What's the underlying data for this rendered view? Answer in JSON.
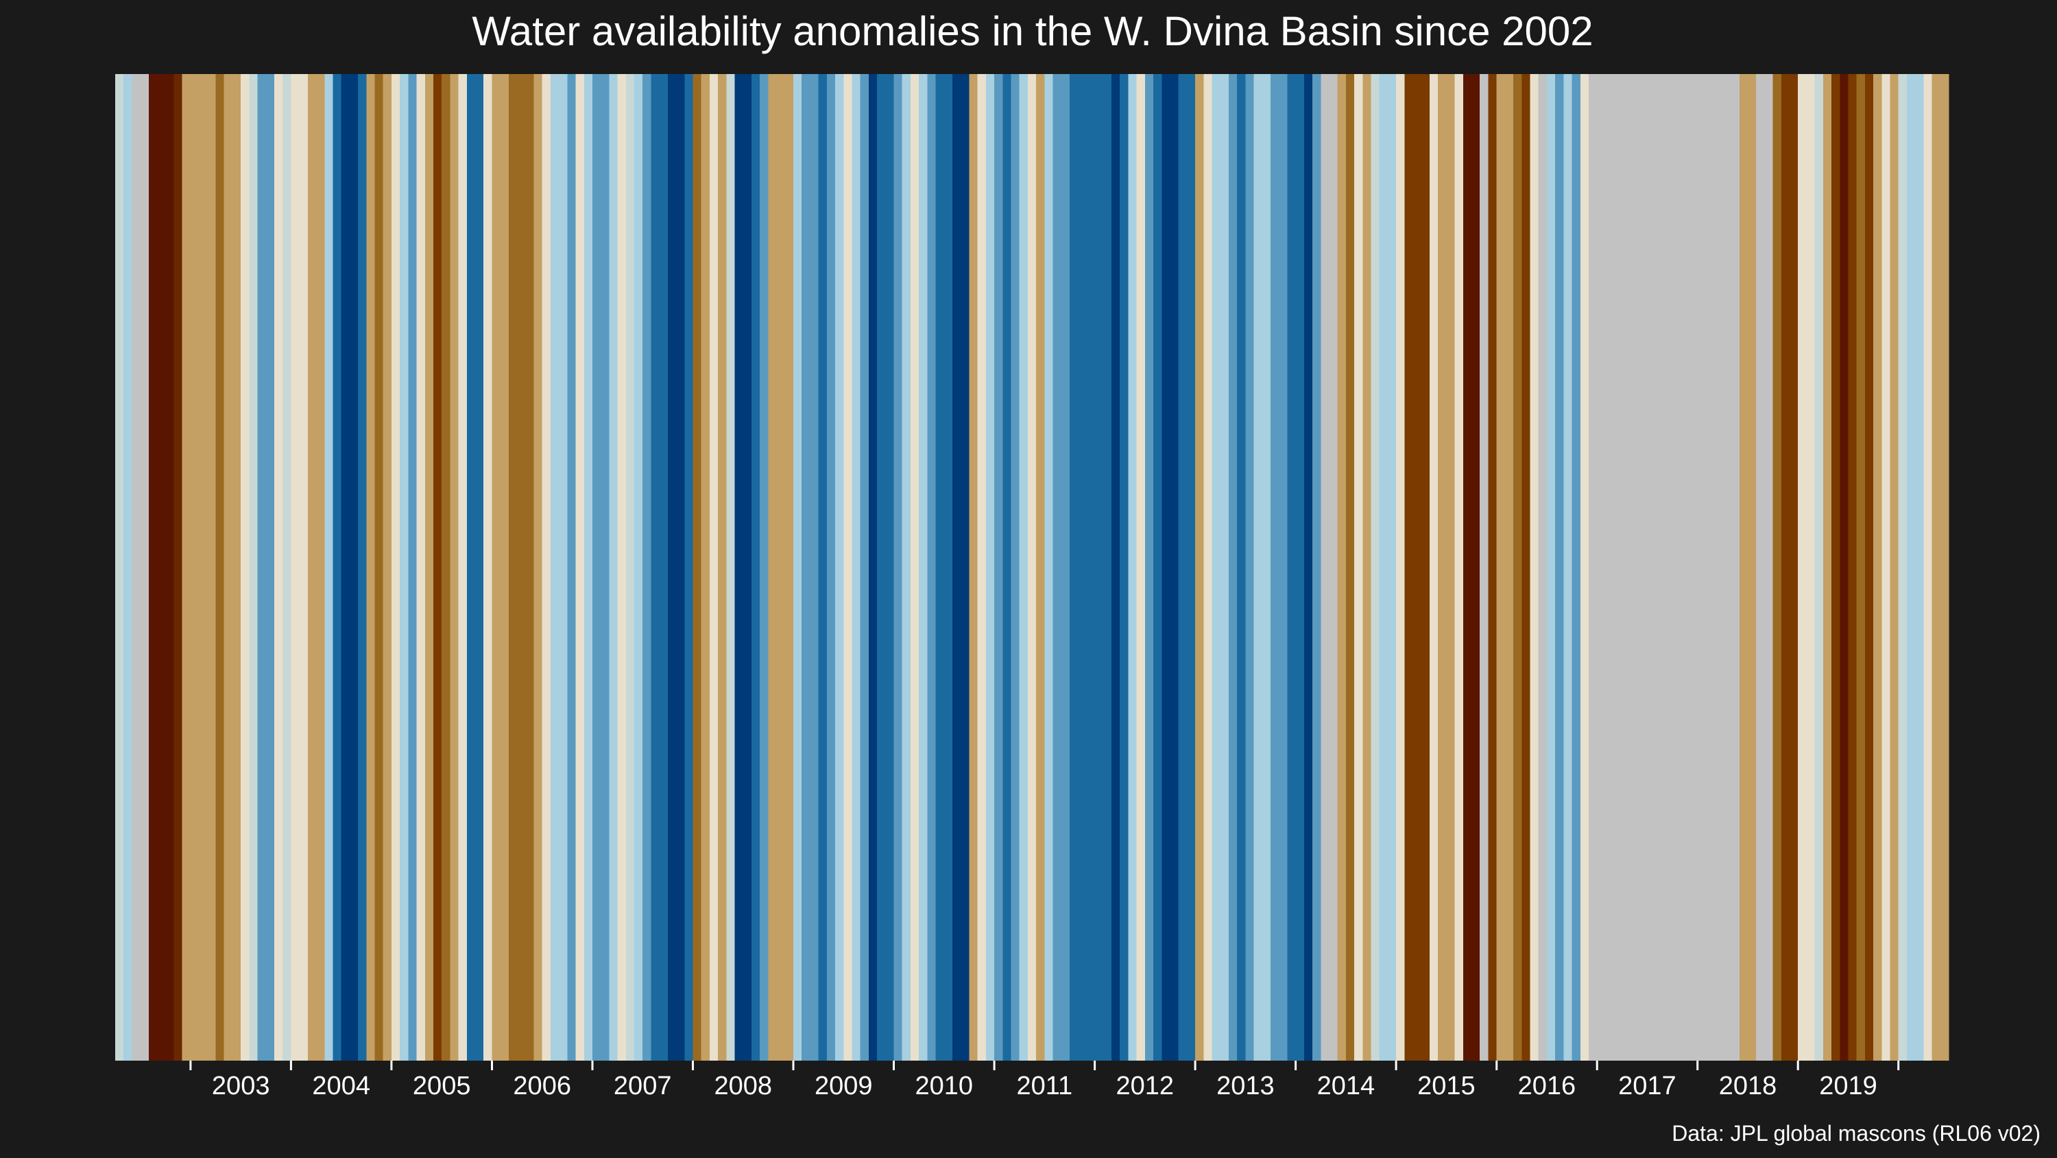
{
  "chart_data": {
    "type": "heatmap",
    "title": "Water availability anomalies in the W. Dvina Basin since 2002",
    "caption": "Data: JPL global mascons (RL06 v02)",
    "x_range": [
      "2002-04",
      "2020-06"
    ],
    "tick_labels": [
      "2003",
      "2004",
      "2005",
      "2006",
      "2007",
      "2008",
      "2009",
      "2010",
      "2011",
      "2012",
      "2013",
      "2014",
      "2015",
      "2016",
      "2017",
      "2018",
      "2019"
    ],
    "tick_positions_year": [
      2003,
      2004,
      2005,
      2006,
      2007,
      2008,
      2009,
      2010,
      2011,
      2012,
      2013,
      2014,
      2015,
      2016,
      2017,
      2018,
      2019,
      2020
    ],
    "colors": {
      "background": "#1a1a1a",
      "missing": "#c2c2c2",
      "scale": {
        "-4": "#5a1500",
        "-3": "#7a3a00",
        "-2": "#9a6a22",
        "-1": "#c4a064",
        "0": "#e8e0cc",
        "1": "#a8d0e0",
        "2": "#5a9ac0",
        "3": "#1a6aa0",
        "4": "#003a78"
      }
    },
    "anomaly_class_by_month": [
      {
        "month": "2002-04",
        "class": 0.5
      },
      {
        "month": "2002-05",
        "class": 1
      },
      {
        "month": "2002-06",
        "class": null
      },
      {
        "month": "2002-07",
        "class": null
      },
      {
        "month": "2002-08",
        "class": -4
      },
      {
        "month": "2002-09",
        "class": -4
      },
      {
        "month": "2002-10",
        "class": -4
      },
      {
        "month": "2002-11",
        "class": -3.5
      },
      {
        "month": "2002-12",
        "class": -1
      },
      {
        "month": "2003-01",
        "class": -1
      },
      {
        "month": "2003-02",
        "class": -1
      },
      {
        "month": "2003-03",
        "class": -1
      },
      {
        "month": "2003-04",
        "class": -2
      },
      {
        "month": "2003-05",
        "class": -1
      },
      {
        "month": "2003-06",
        "class": -1
      },
      {
        "month": "2003-07",
        "class": 0
      },
      {
        "month": "2003-08",
        "class": 0.5
      },
      {
        "month": "2003-09",
        "class": 2
      },
      {
        "month": "2003-10",
        "class": 2
      },
      {
        "month": "2003-11",
        "class": 0
      },
      {
        "month": "2003-12",
        "class": 0.5
      },
      {
        "month": "2004-01",
        "class": 0
      },
      {
        "month": "2004-02",
        "class": 0
      },
      {
        "month": "2004-03",
        "class": -1
      },
      {
        "month": "2004-04",
        "class": -1
      },
      {
        "month": "2004-05",
        "class": 1
      },
      {
        "month": "2004-06",
        "class": 3
      },
      {
        "month": "2004-07",
        "class": 4
      },
      {
        "month": "2004-08",
        "class": 4
      },
      {
        "month": "2004-09",
        "class": 3
      },
      {
        "month": "2004-10",
        "class": -1
      },
      {
        "month": "2004-11",
        "class": -2
      },
      {
        "month": "2004-12",
        "class": -1
      },
      {
        "month": "2005-01",
        "class": 0
      },
      {
        "month": "2005-02",
        "class": 1
      },
      {
        "month": "2005-03",
        "class": 2
      },
      {
        "month": "2005-04",
        "class": 0
      },
      {
        "month": "2005-05",
        "class": -1
      },
      {
        "month": "2005-06",
        "class": -3
      },
      {
        "month": "2005-07",
        "class": -2
      },
      {
        "month": "2005-08",
        "class": -1
      },
      {
        "month": "2005-09",
        "class": 0
      },
      {
        "month": "2005-10",
        "class": 3
      },
      {
        "month": "2005-11",
        "class": 3
      },
      {
        "month": "2005-12",
        "class": 0
      },
      {
        "month": "2006-01",
        "class": -1
      },
      {
        "month": "2006-02",
        "class": -1
      },
      {
        "month": "2006-03",
        "class": -2
      },
      {
        "month": "2006-04",
        "class": -2
      },
      {
        "month": "2006-05",
        "class": -2
      },
      {
        "month": "2006-06",
        "class": -1
      },
      {
        "month": "2006-07",
        "class": 0
      },
      {
        "month": "2006-08",
        "class": 1
      },
      {
        "month": "2006-09",
        "class": 1
      },
      {
        "month": "2006-10",
        "class": 2
      },
      {
        "month": "2006-11",
        "class": 0
      },
      {
        "month": "2006-12",
        "class": 1
      },
      {
        "month": "2007-01",
        "class": 2
      },
      {
        "month": "2007-02",
        "class": 2
      },
      {
        "month": "2007-03",
        "class": 1
      },
      {
        "month": "2007-04",
        "class": 0
      },
      {
        "month": "2007-05",
        "class": 0.5
      },
      {
        "month": "2007-06",
        "class": 1
      },
      {
        "month": "2007-07",
        "class": 2
      },
      {
        "month": "2007-08",
        "class": 3
      },
      {
        "month": "2007-09",
        "class": 3
      },
      {
        "month": "2007-10",
        "class": 4
      },
      {
        "month": "2007-11",
        "class": 4
      },
      {
        "month": "2007-12",
        "class": 3
      },
      {
        "month": "2008-01",
        "class": -2
      },
      {
        "month": "2008-02",
        "class": -1
      },
      {
        "month": "2008-03",
        "class": 0
      },
      {
        "month": "2008-04",
        "class": -1
      },
      {
        "month": "2008-05",
        "class": 0.5
      },
      {
        "month": "2008-06",
        "class": 4
      },
      {
        "month": "2008-07",
        "class": 4
      },
      {
        "month": "2008-08",
        "class": 3
      },
      {
        "month": "2008-09",
        "class": 2
      },
      {
        "month": "2008-10",
        "class": -1
      },
      {
        "month": "2008-11",
        "class": -1
      },
      {
        "month": "2008-12",
        "class": -1
      },
      {
        "month": "2009-01",
        "class": 1
      },
      {
        "month": "2009-02",
        "class": 2
      },
      {
        "month": "2009-03",
        "class": 2
      },
      {
        "month": "2009-04",
        "class": 3
      },
      {
        "month": "2009-05",
        "class": 2
      },
      {
        "month": "2009-06",
        "class": 1
      },
      {
        "month": "2009-07",
        "class": 0
      },
      {
        "month": "2009-08",
        "class": 1
      },
      {
        "month": "2009-09",
        "class": 2
      },
      {
        "month": "2009-10",
        "class": 4
      },
      {
        "month": "2009-11",
        "class": 3
      },
      {
        "month": "2009-12",
        "class": 3
      },
      {
        "month": "2010-01",
        "class": 2
      },
      {
        "month": "2010-02",
        "class": 1
      },
      {
        "month": "2010-03",
        "class": 0
      },
      {
        "month": "2010-04",
        "class": 1
      },
      {
        "month": "2010-05",
        "class": 2
      },
      {
        "month": "2010-06",
        "class": 3
      },
      {
        "month": "2010-07",
        "class": 3
      },
      {
        "month": "2010-08",
        "class": 4
      },
      {
        "month": "2010-09",
        "class": 4
      },
      {
        "month": "2010-10",
        "class": -1
      },
      {
        "month": "2010-11",
        "class": 0
      },
      {
        "month": "2010-12",
        "class": 1
      },
      {
        "month": "2011-01",
        "class": 2
      },
      {
        "month": "2011-02",
        "class": 3
      },
      {
        "month": "2011-03",
        "class": 2
      },
      {
        "month": "2011-04",
        "class": 1
      },
      {
        "month": "2011-05",
        "class": 0
      },
      {
        "month": "2011-06",
        "class": -1
      },
      {
        "month": "2011-07",
        "class": 1
      },
      {
        "month": "2011-08",
        "class": 2
      },
      {
        "month": "2011-09",
        "class": 2
      },
      {
        "month": "2011-10",
        "class": 3
      },
      {
        "month": "2011-11",
        "class": 3
      },
      {
        "month": "2011-12",
        "class": 3
      },
      {
        "month": "2012-01",
        "class": 3
      },
      {
        "month": "2012-02",
        "class": 3
      },
      {
        "month": "2012-03",
        "class": 4
      },
      {
        "month": "2012-04",
        "class": 3
      },
      {
        "month": "2012-05",
        "class": 1
      },
      {
        "month": "2012-06",
        "class": 0
      },
      {
        "month": "2012-07",
        "class": 2
      },
      {
        "month": "2012-08",
        "class": 3
      },
      {
        "month": "2012-09",
        "class": 4
      },
      {
        "month": "2012-10",
        "class": 4
      },
      {
        "month": "2012-11",
        "class": 3
      },
      {
        "month": "2012-12",
        "class": 3
      },
      {
        "month": "2013-01",
        "class": -1
      },
      {
        "month": "2013-02",
        "class": 0
      },
      {
        "month": "2013-03",
        "class": 1
      },
      {
        "month": "2013-04",
        "class": 1
      },
      {
        "month": "2013-05",
        "class": 2
      },
      {
        "month": "2013-06",
        "class": 3
      },
      {
        "month": "2013-07",
        "class": 2
      },
      {
        "month": "2013-08",
        "class": 1
      },
      {
        "month": "2013-09",
        "class": 1
      },
      {
        "month": "2013-10",
        "class": 2
      },
      {
        "month": "2013-11",
        "class": 2
      },
      {
        "month": "2013-12",
        "class": 3
      },
      {
        "month": "2014-01",
        "class": 3
      },
      {
        "month": "2014-02",
        "class": 4
      },
      {
        "month": "2014-03",
        "class": 2
      },
      {
        "month": "2014-04",
        "class": null
      },
      {
        "month": "2014-05",
        "class": null
      },
      {
        "month": "2014-06",
        "class": -1
      },
      {
        "month": "2014-07",
        "class": -2
      },
      {
        "month": "2014-08",
        "class": 0
      },
      {
        "month": "2014-09",
        "class": -1
      },
      {
        "month": "2014-10",
        "class": 0.5
      },
      {
        "month": "2014-11",
        "class": 1
      },
      {
        "month": "2014-12",
        "class": 1
      },
      {
        "month": "2015-01",
        "class": 0
      },
      {
        "month": "2015-02",
        "class": -3
      },
      {
        "month": "2015-03",
        "class": -3
      },
      {
        "month": "2015-04",
        "class": -3
      },
      {
        "month": "2015-05",
        "class": 0
      },
      {
        "month": "2015-06",
        "class": -1
      },
      {
        "month": "2015-07",
        "class": -1
      },
      {
        "month": "2015-08",
        "class": 0
      },
      {
        "month": "2015-09",
        "class": -4
      },
      {
        "month": "2015-10",
        "class": -4
      },
      {
        "month": "2015-11",
        "class": null
      },
      {
        "month": "2015-12",
        "class": -3
      },
      {
        "month": "2016-01",
        "class": -1
      },
      {
        "month": "2016-02",
        "class": -1
      },
      {
        "month": "2016-03",
        "class": -2
      },
      {
        "month": "2016-04",
        "class": -3
      },
      {
        "month": "2016-05",
        "class": 0
      },
      {
        "month": "2016-06",
        "class": null
      },
      {
        "month": "2016-07",
        "class": 1
      },
      {
        "month": "2016-08",
        "class": 2
      },
      {
        "month": "2016-09",
        "class": 1
      },
      {
        "month": "2016-10",
        "class": 2
      },
      {
        "month": "2016-11",
        "class": 0
      },
      {
        "month": "2016-12",
        "class": null
      },
      {
        "month": "2017-01",
        "class": null
      },
      {
        "month": "2017-02",
        "class": null
      },
      {
        "month": "2017-03",
        "class": null
      },
      {
        "month": "2017-04",
        "class": null
      },
      {
        "month": "2017-05",
        "class": null
      },
      {
        "month": "2017-06",
        "class": null
      },
      {
        "month": "2017-07",
        "class": null
      },
      {
        "month": "2017-08",
        "class": null
      },
      {
        "month": "2017-09",
        "class": null
      },
      {
        "month": "2017-10",
        "class": null
      },
      {
        "month": "2017-11",
        "class": null
      },
      {
        "month": "2017-12",
        "class": null
      },
      {
        "month": "2018-01",
        "class": null
      },
      {
        "month": "2018-02",
        "class": null
      },
      {
        "month": "2018-03",
        "class": null
      },
      {
        "month": "2018-04",
        "class": null
      },
      {
        "month": "2018-05",
        "class": null
      },
      {
        "month": "2018-06",
        "class": -1
      },
      {
        "month": "2018-07",
        "class": -1
      },
      {
        "month": "2018-08",
        "class": null
      },
      {
        "month": "2018-09",
        "class": null
      },
      {
        "month": "2018-10",
        "class": -2
      },
      {
        "month": "2018-11",
        "class": -3
      },
      {
        "month": "2018-12",
        "class": -3
      },
      {
        "month": "2019-01",
        "class": 0
      },
      {
        "month": "2019-02",
        "class": 0
      },
      {
        "month": "2019-03",
        "class": 0.5
      },
      {
        "month": "2019-04",
        "class": -1
      },
      {
        "month": "2019-05",
        "class": -3
      },
      {
        "month": "2019-06",
        "class": -4
      },
      {
        "month": "2019-07",
        "class": -3
      },
      {
        "month": "2019-08",
        "class": -2
      },
      {
        "month": "2019-09",
        "class": -3
      },
      {
        "month": "2019-10",
        "class": -1
      },
      {
        "month": "2019-11",
        "class": 0
      },
      {
        "month": "2019-12",
        "class": -1
      },
      {
        "month": "2020-01",
        "class": 0.5
      },
      {
        "month": "2020-02",
        "class": 1
      },
      {
        "month": "2020-03",
        "class": 1
      },
      {
        "month": "2020-04",
        "class": 0
      },
      {
        "month": "2020-05",
        "class": -1
      },
      {
        "month": "2020-06",
        "class": -1
      }
    ]
  }
}
